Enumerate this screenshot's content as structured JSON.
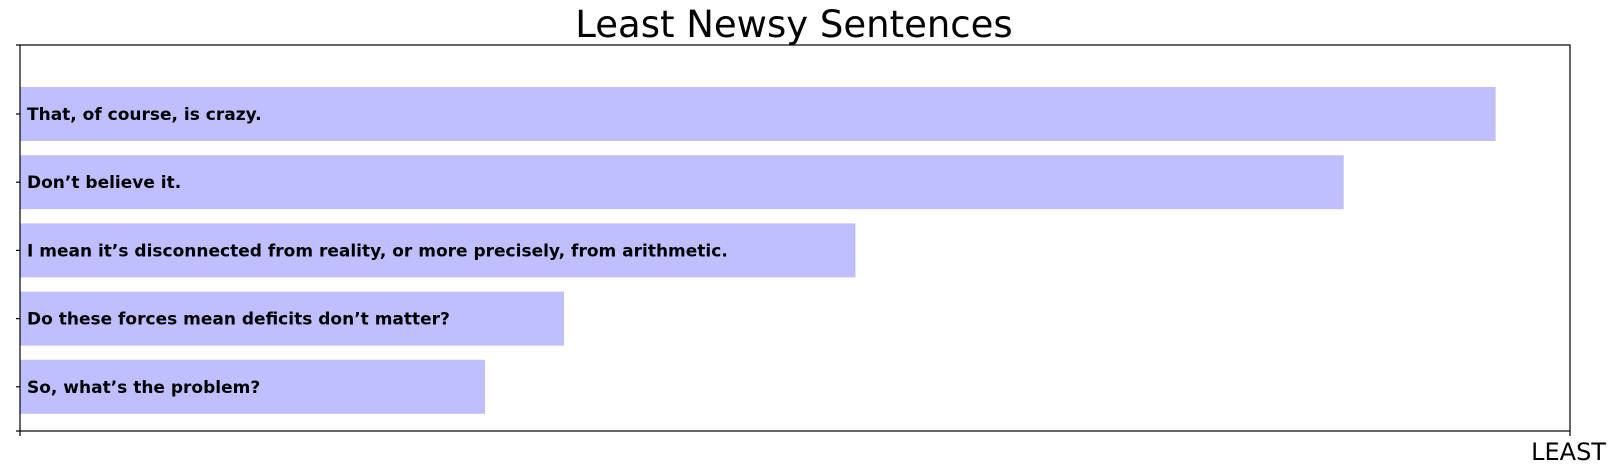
{
  "chart_data": {
    "type": "bar",
    "orientation": "horizontal",
    "title": "Least Newsy Sentences",
    "xlabel": "LEAST",
    "ylabel": "",
    "bar_color": "#bfbfff",
    "categories": [
      "That, of course, is crazy.",
      "Don’t believe it.",
      "I mean it’s disconnected from reality, or more precisely, from arithmetic.",
      "Do these forces mean deficits don’t matter?",
      "So, what’s the problem?"
    ],
    "values": [
      0.952,
      0.854,
      0.539,
      0.351,
      0.3
    ],
    "xlim": [
      0,
      1
    ],
    "grid": false,
    "legend": "none"
  }
}
